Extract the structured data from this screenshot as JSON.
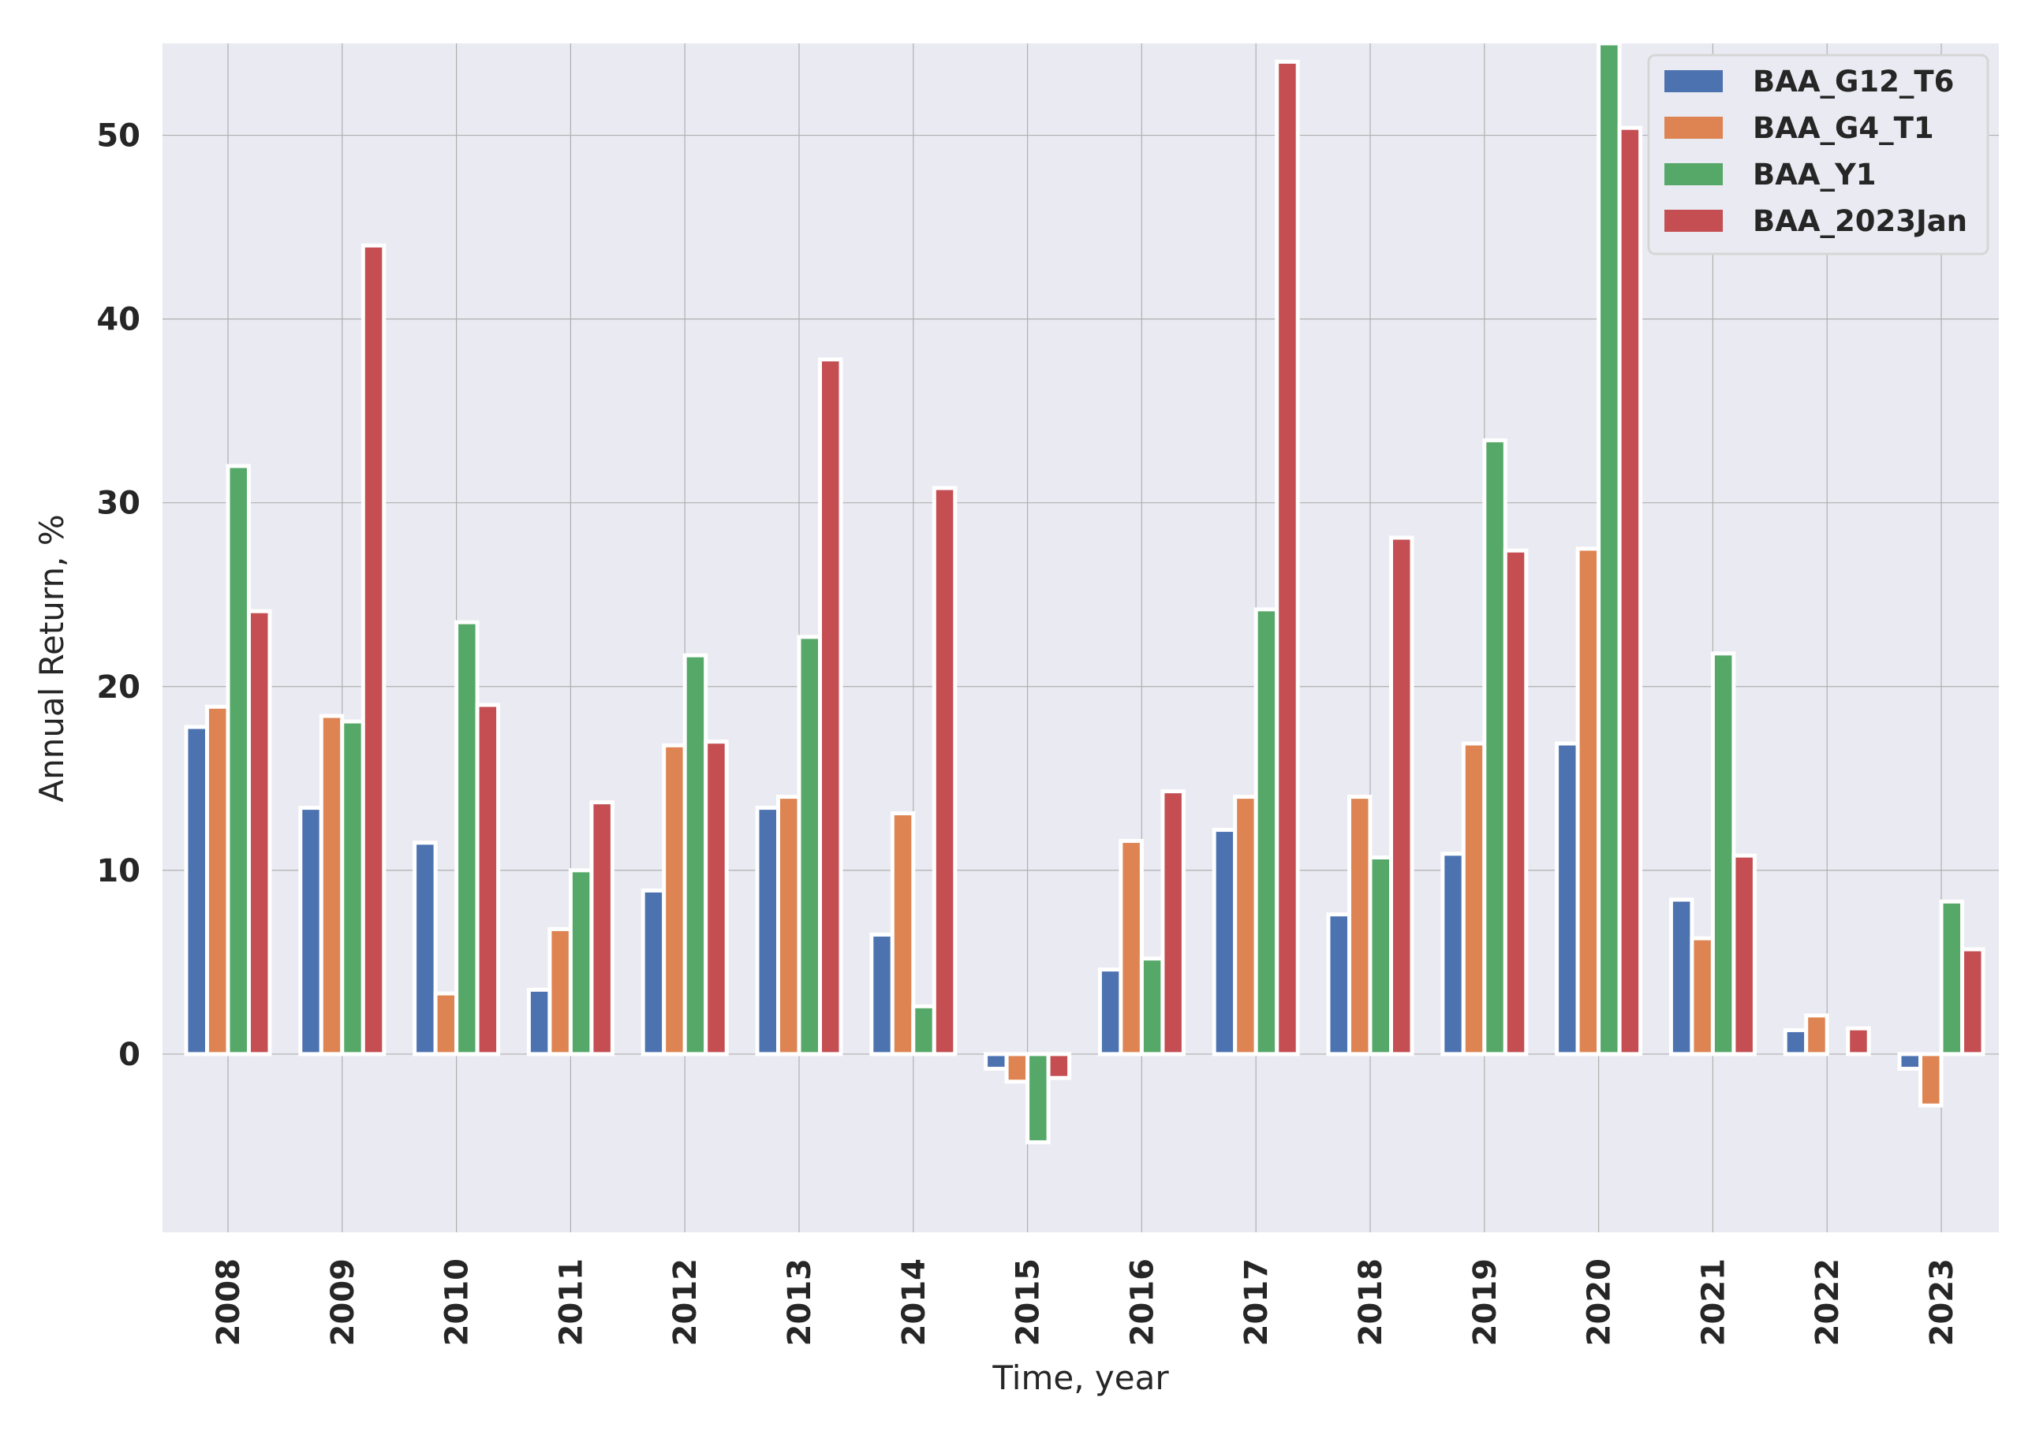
{
  "chart_data": {
    "type": "bar",
    "xlabel": "Time, year",
    "ylabel": "Annual Return, %",
    "ylim": [
      -9.7,
      55
    ],
    "yticks": [
      0,
      10,
      20,
      30,
      40,
      50
    ],
    "categories": [
      "2008",
      "2009",
      "2010",
      "2011",
      "2012",
      "2013",
      "2014",
      "2015",
      "2016",
      "2017",
      "2018",
      "2019",
      "2020",
      "2021",
      "2022",
      "2023"
    ],
    "series": [
      {
        "name": "BAA_G12_T6",
        "color": "#4c72b0",
        "values": [
          17.8,
          13.4,
          11.5,
          3.5,
          8.9,
          13.4,
          6.5,
          -0.8,
          4.6,
          12.2,
          7.6,
          10.9,
          16.9,
          8.4,
          1.3,
          -0.8
        ]
      },
      {
        "name": "BAA_G4_T1",
        "color": "#dd8452",
        "values": [
          18.9,
          18.4,
          3.3,
          6.8,
          16.8,
          14.0,
          13.1,
          -1.5,
          11.6,
          14.0,
          14.0,
          16.9,
          27.5,
          6.3,
          2.1,
          -2.8
        ]
      },
      {
        "name": "BAA_Y1",
        "color": "#55a868",
        "values": [
          32.0,
          18.1,
          23.5,
          10.0,
          21.7,
          22.7,
          2.6,
          -4.8,
          5.2,
          24.2,
          10.7,
          33.4,
          55.5,
          21.8,
          0.0,
          8.3
        ]
      },
      {
        "name": "BAA_2023Jan",
        "color": "#c44e52",
        "values": [
          24.1,
          44.0,
          19.0,
          13.7,
          17.0,
          37.8,
          30.8,
          -1.3,
          14.3,
          54.0,
          28.1,
          27.4,
          50.4,
          10.8,
          1.4,
          5.7
        ]
      }
    ],
    "grid": true,
    "legend_position": "top-right",
    "background": "#eaeaf2",
    "grid_color": "#b0b0b0"
  }
}
